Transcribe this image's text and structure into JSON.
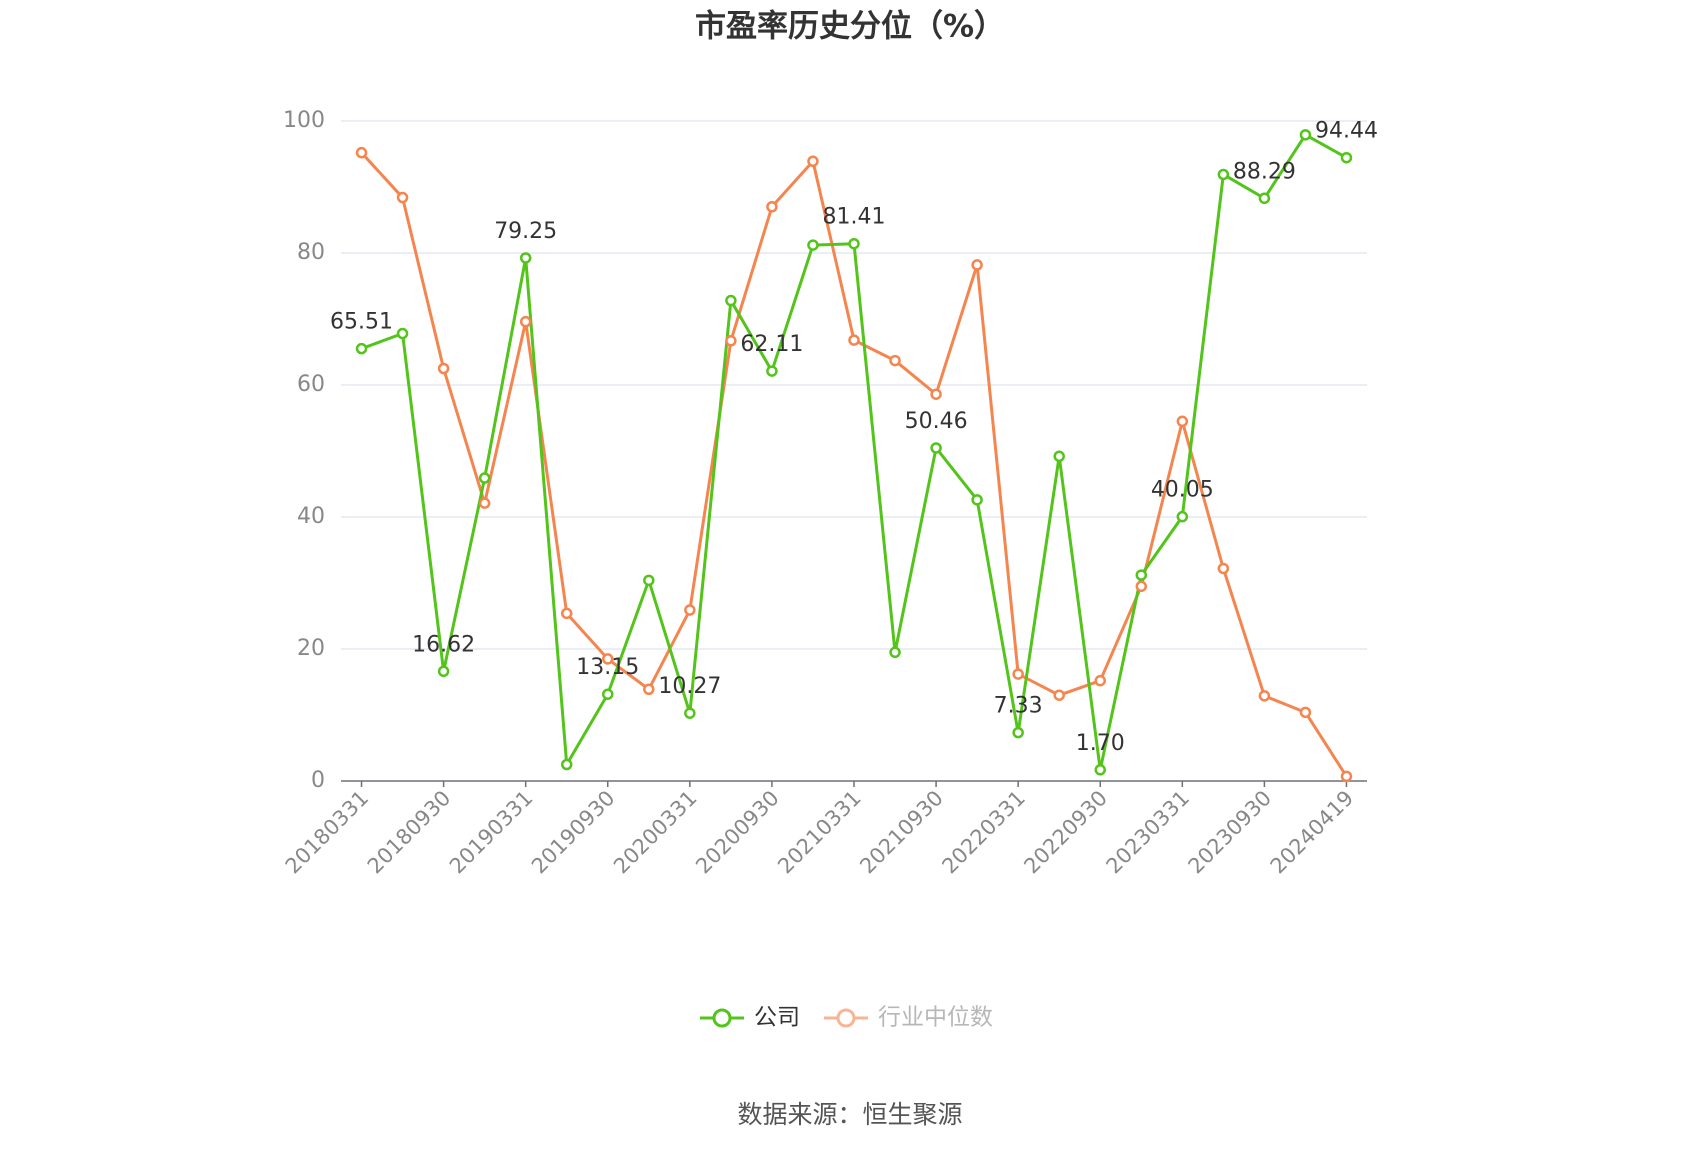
{
  "chart_data": {
    "type": "line",
    "title": "市盈率历史分位（%）",
    "source": "数据来源：恒生聚源",
    "categories": [
      "20180331",
      null,
      "20180930",
      null,
      "20190331",
      null,
      "20190930",
      null,
      "20200331",
      null,
      "20200930",
      null,
      "20210331",
      null,
      "20210930",
      null,
      "20220331",
      null,
      "20220930",
      null,
      "20230331",
      null,
      "20230930",
      null,
      "20240419"
    ],
    "series": [
      {
        "name": "公司",
        "color": "#52c41a",
        "values": [
          65.51,
          67.8,
          16.62,
          45.9,
          79.25,
          2.5,
          13.15,
          30.4,
          10.27,
          72.8,
          62.11,
          81.2,
          81.41,
          19.5,
          50.46,
          42.6,
          7.33,
          49.2,
          1.7,
          31.2,
          40.05,
          91.9,
          88.29,
          97.9,
          94.44
        ],
        "value_labels": [
          "65.51",
          null,
          "16.62",
          null,
          "79.25",
          null,
          "13.15",
          null,
          "10.27",
          null,
          "62.11",
          null,
          "81.41",
          null,
          "50.46",
          null,
          "7.33",
          null,
          "1.70",
          null,
          "40.05",
          null,
          "88.29",
          null,
          "94.44"
        ]
      },
      {
        "name": "行业中位数",
        "color": "#f5854f",
        "values": [
          95.2,
          88.4,
          62.5,
          42.1,
          69.6,
          25.4,
          18.5,
          13.9,
          25.9,
          66.7,
          87.0,
          93.9,
          66.8,
          63.7,
          58.6,
          78.2,
          16.2,
          13.0,
          15.2,
          29.5,
          54.5,
          32.2,
          12.9,
          10.4,
          0.7
        ]
      }
    ],
    "ylim": [
      0,
      100
    ],
    "yticks": [
      0,
      20,
      40,
      60,
      80,
      100
    ],
    "grid": true,
    "legend": "bottom"
  }
}
